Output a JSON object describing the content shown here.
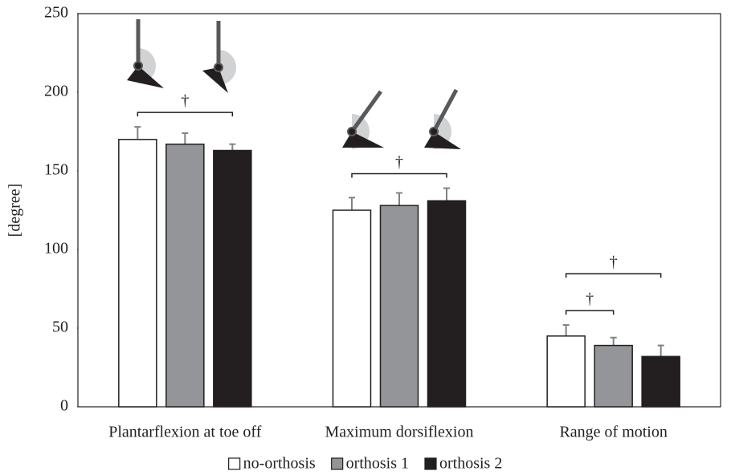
{
  "chart_data": {
    "type": "bar",
    "y_label": "[degree]",
    "categories": [
      "Plantarflexion at toe off",
      "Maximum dorsiflexion",
      "Range of motion"
    ],
    "series": [
      {
        "name": "no-orthosis",
        "color": "#ffffff",
        "values": [
          170,
          125,
          45
        ],
        "errors": [
          8,
          8,
          7
        ]
      },
      {
        "name": "orthosis 1",
        "color": "#939598",
        "values": [
          167,
          128,
          39
        ],
        "errors": [
          7,
          8,
          5
        ]
      },
      {
        "name": "orthosis 2",
        "color": "#231f20",
        "values": [
          163,
          131,
          32
        ],
        "errors": [
          4,
          8,
          7
        ]
      }
    ],
    "ylim": [
      0,
      250
    ],
    "yticks": [
      0,
      50,
      100,
      150,
      200,
      250
    ],
    "annotations": [
      {
        "text": "†",
        "category": 0,
        "series": [
          0,
          2
        ]
      },
      {
        "text": "†",
        "category": 1,
        "series": [
          0,
          2
        ]
      },
      {
        "text": "†",
        "category": 2,
        "series": [
          0,
          1
        ]
      },
      {
        "text": "†",
        "category": 2,
        "series": [
          0,
          2
        ]
      }
    ],
    "legend": "bottom"
  }
}
